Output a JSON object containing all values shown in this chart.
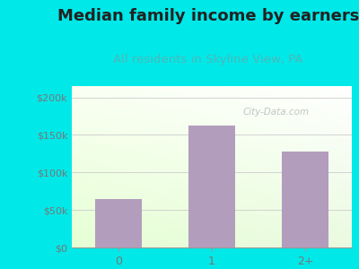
{
  "title": "Median family income by earners",
  "subtitle": "All residents in Skyline View, PA",
  "categories": [
    "0",
    "1",
    "2+"
  ],
  "values": [
    65000,
    162000,
    128000
  ],
  "bar_color": "#b39dbd",
  "title_color": "#222222",
  "subtitle_color": "#4db8b8",
  "outer_bg_color": "#00e8e8",
  "yticks": [
    0,
    50000,
    100000,
    150000,
    200000
  ],
  "ytick_labels": [
    "$0",
    "$50k",
    "$100k",
    "$150k",
    "$200k"
  ],
  "ylim": [
    0,
    215000
  ],
  "watermark": "City-Data.com",
  "title_fontsize": 13,
  "subtitle_fontsize": 9.5,
  "tick_color": "#777777",
  "grid_color": "#cccccc"
}
